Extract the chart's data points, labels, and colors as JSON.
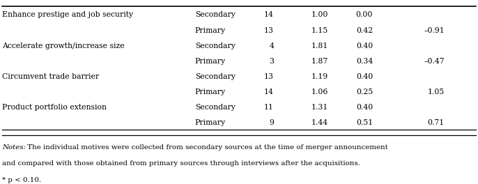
{
  "rows": [
    {
      "motive": "Enhance prestige and job security",
      "type": "Secondary",
      "n": "14",
      "mean": "1.00",
      "sd": "0.00",
      "t": ""
    },
    {
      "motive": "",
      "type": "Primary",
      "n": "13",
      "mean": "1.15",
      "sd": "0.42",
      "t": "–0.91"
    },
    {
      "motive": "Accelerate growth/increase size",
      "type": "Secondary",
      "n": "4",
      "mean": "1.81",
      "sd": "0.40",
      "t": ""
    },
    {
      "motive": "",
      "type": "Primary",
      "n": "3",
      "mean": "1.87",
      "sd": "0.34",
      "t": "–0.47"
    },
    {
      "motive": "Circumvent trade barrier",
      "type": "Secondary",
      "n": "13",
      "mean": "1.19",
      "sd": "0.40",
      "t": ""
    },
    {
      "motive": "",
      "type": "Primary",
      "n": "14",
      "mean": "1.06",
      "sd": "0.25",
      "t": "1.05"
    },
    {
      "motive": "Product portfolio extension",
      "type": "Secondary",
      "n": "11",
      "mean": "1.31",
      "sd": "0.40",
      "t": ""
    },
    {
      "motive": "",
      "type": "Primary",
      "n": "9",
      "mean": "1.44",
      "sd": "0.51",
      "t": "0.71"
    }
  ],
  "notes_italic": "Notes:",
  "notes_rest1": " The individual motives were collected from secondary sources at the time of merger announcement",
  "notes_line2": "and compared with those obtained from primary sources through interviews after the acquisitions.",
  "notes_line3": "* p < 0.10.",
  "col_x": {
    "motive": 0.005,
    "type": 0.408,
    "n": 0.548,
    "mean": 0.648,
    "sd": 0.742,
    "t": 0.87
  },
  "fontsize": 7.8,
  "notes_fontsize": 7.4
}
